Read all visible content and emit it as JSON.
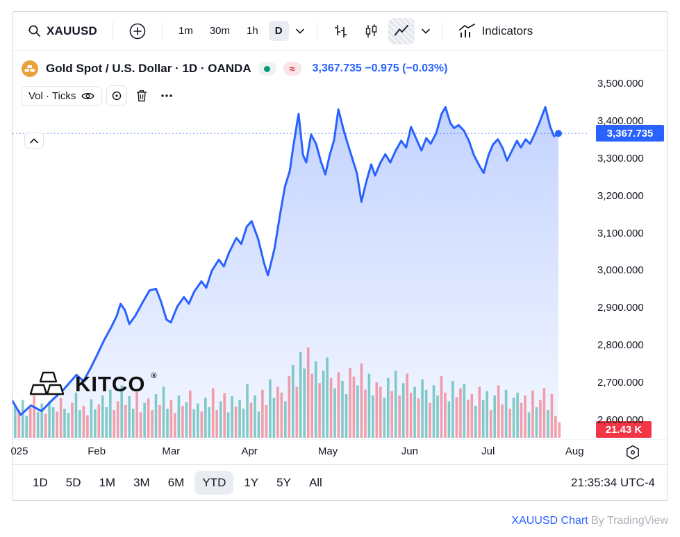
{
  "toolbar": {
    "symbol": "XAUUSD",
    "intervals": [
      {
        "label": "1m"
      },
      {
        "label": "30m"
      },
      {
        "label": "1h"
      },
      {
        "label": "D"
      }
    ],
    "selected_interval": "D",
    "indicators_label": "Indicators"
  },
  "legend": {
    "title": "Gold Spot / U.S. Dollar · 1D · OANDA",
    "approx": "≈",
    "price": "3,367.735",
    "change": "−0.975 (−0.03%)",
    "vol_label": "Vol · Ticks"
  },
  "watermark": {
    "text": "KITCO",
    "reg": "®"
  },
  "price_scale": {
    "ticks": [
      {
        "label": "3,500.000",
        "value": 3500
      },
      {
        "label": "3,400.000",
        "value": 3400
      },
      {
        "label": "3,300.000",
        "value": 3300
      },
      {
        "label": "3,200.000",
        "value": 3200
      },
      {
        "label": "3,100.000",
        "value": 3100
      },
      {
        "label": "3,000.000",
        "value": 3000
      },
      {
        "label": "2,900.000",
        "value": 2900
      },
      {
        "label": "2,800.000",
        "value": 2800
      },
      {
        "label": "2,700.000",
        "value": 2700
      },
      {
        "label": "2,600.000",
        "value": 2600
      }
    ],
    "current_label": "3,367.735",
    "volume_label": "21.43 K"
  },
  "time_axis": {
    "labels": [
      {
        "text": "025",
        "t": 0.012
      },
      {
        "text": "Feb",
        "t": 0.146
      },
      {
        "text": "Mar",
        "t": 0.275
      },
      {
        "text": "Apr",
        "t": 0.411
      },
      {
        "text": "May",
        "t": 0.547
      },
      {
        "text": "Jun",
        "t": 0.689
      },
      {
        "text": "Jul",
        "t": 0.825
      },
      {
        "text": "Aug",
        "t": 0.975
      }
    ]
  },
  "range_toolbar": {
    "items": [
      "1D",
      "5D",
      "1M",
      "3M",
      "6M",
      "YTD",
      "1Y",
      "5Y",
      "All"
    ],
    "selected": "YTD",
    "clock": "21:35:34 UTC-4"
  },
  "footer": {
    "link": "XAUUSD Chart",
    "by": " By TradingView"
  },
  "colors": {
    "accent": "#2962ff",
    "up": "#26a69a",
    "down": "#f23645",
    "status_green": "#089981",
    "price_chip_bg": "#2962ff",
    "volume_chip_bg": "#f23645",
    "coin_gold": "#EAA13B"
  },
  "chart_data": {
    "type": "area",
    "title": "Gold Spot / U.S. Dollar",
    "symbol": "XAUUSD",
    "interval": "1D",
    "exchange": "OANDA",
    "last_price": 3367.735,
    "change": -0.975,
    "change_pct": -0.03,
    "y_range": [
      2600,
      3500
    ],
    "x_unit": "fraction of visible range (Jan 2025 – Aug 2025)",
    "points": [
      [
        0.0,
        2652
      ],
      [
        0.015,
        2615
      ],
      [
        0.034,
        2640
      ],
      [
        0.053,
        2625
      ],
      [
        0.073,
        2655
      ],
      [
        0.092,
        2680
      ],
      [
        0.104,
        2700
      ],
      [
        0.117,
        2722
      ],
      [
        0.13,
        2705
      ],
      [
        0.143,
        2740
      ],
      [
        0.154,
        2772
      ],
      [
        0.168,
        2815
      ],
      [
        0.181,
        2850
      ],
      [
        0.191,
        2880
      ],
      [
        0.198,
        2912
      ],
      [
        0.206,
        2895
      ],
      [
        0.214,
        2858
      ],
      [
        0.225,
        2880
      ],
      [
        0.238,
        2915
      ],
      [
        0.251,
        2948
      ],
      [
        0.263,
        2952
      ],
      [
        0.272,
        2918
      ],
      [
        0.282,
        2870
      ],
      [
        0.29,
        2862
      ],
      [
        0.302,
        2905
      ],
      [
        0.314,
        2930
      ],
      [
        0.323,
        2912
      ],
      [
        0.333,
        2945
      ],
      [
        0.346,
        2972
      ],
      [
        0.355,
        2955
      ],
      [
        0.365,
        3000
      ],
      [
        0.378,
        3030
      ],
      [
        0.387,
        3012
      ],
      [
        0.397,
        3050
      ],
      [
        0.41,
        3088
      ],
      [
        0.419,
        3072
      ],
      [
        0.429,
        3118
      ],
      [
        0.438,
        3133
      ],
      [
        0.45,
        3085
      ],
      [
        0.461,
        3020
      ],
      [
        0.468,
        2988
      ],
      [
        0.48,
        3060
      ],
      [
        0.49,
        3150
      ],
      [
        0.499,
        3225
      ],
      [
        0.508,
        3268
      ],
      [
        0.514,
        3330
      ],
      [
        0.524,
        3420
      ],
      [
        0.532,
        3310
      ],
      [
        0.538,
        3290
      ],
      [
        0.547,
        3365
      ],
      [
        0.556,
        3340
      ],
      [
        0.565,
        3292
      ],
      [
        0.573,
        3258
      ],
      [
        0.581,
        3310
      ],
      [
        0.589,
        3350
      ],
      [
        0.597,
        3432
      ],
      [
        0.606,
        3380
      ],
      [
        0.613,
        3345
      ],
      [
        0.623,
        3298
      ],
      [
        0.631,
        3260
      ],
      [
        0.639,
        3185
      ],
      [
        0.648,
        3238
      ],
      [
        0.657,
        3285
      ],
      [
        0.664,
        3255
      ],
      [
        0.674,
        3290
      ],
      [
        0.683,
        3312
      ],
      [
        0.692,
        3290
      ],
      [
        0.702,
        3322
      ],
      [
        0.712,
        3348
      ],
      [
        0.721,
        3330
      ],
      [
        0.73,
        3385
      ],
      [
        0.74,
        3352
      ],
      [
        0.749,
        3322
      ],
      [
        0.758,
        3355
      ],
      [
        0.766,
        3340
      ],
      [
        0.776,
        3368
      ],
      [
        0.786,
        3420
      ],
      [
        0.793,
        3438
      ],
      [
        0.802,
        3395
      ],
      [
        0.809,
        3382
      ],
      [
        0.817,
        3390
      ],
      [
        0.827,
        3375
      ],
      [
        0.836,
        3348
      ],
      [
        0.845,
        3310
      ],
      [
        0.855,
        3282
      ],
      [
        0.863,
        3262
      ],
      [
        0.872,
        3310
      ],
      [
        0.88,
        3338
      ],
      [
        0.889,
        3352
      ],
      [
        0.898,
        3328
      ],
      [
        0.906,
        3295
      ],
      [
        0.915,
        3322
      ],
      [
        0.924,
        3348
      ],
      [
        0.931,
        3330
      ],
      [
        0.94,
        3352
      ],
      [
        0.948,
        3340
      ],
      [
        0.957,
        3368
      ],
      [
        0.966,
        3400
      ],
      [
        0.976,
        3438
      ],
      [
        0.985,
        3385
      ],
      [
        0.992,
        3360
      ],
      [
        1.0,
        3367.735
      ]
    ],
    "volume": {
      "unit": "K",
      "last_label": "21.43 K",
      "values": [
        45,
        38,
        52,
        30,
        41,
        58,
        35,
        47,
        33,
        50,
        42,
        36,
        55,
        40,
        34,
        48,
        62,
        38,
        44,
        31,
        53,
        39,
        46,
        58,
        42,
        66,
        38,
        50,
        72,
        45,
        57,
        40,
        63,
        35,
        48,
        54,
        38,
        60,
        45,
        70,
        40,
        52,
        34,
        58,
        44,
        49,
        65,
        39,
        47,
        36,
        55,
        42,
        68,
        38,
        50,
        61,
        35,
        57,
        43,
        52,
        40,
        74,
        48,
        58,
        36,
        66,
        45,
        80,
        55,
        70,
        62,
        50,
        85,
        100,
        70,
        118,
        95,
        124,
        88,
        105,
        75,
        92,
        110,
        82,
        68,
        90,
        78,
        60,
        96,
        84,
        72,
        102,
        66,
        88,
        58,
        76,
        70,
        55,
        82,
        64,
        92,
        58,
        75,
        88,
        62,
        70,
        54,
        80,
        66,
        48,
        72,
        58,
        85,
        62,
        50,
        78,
        56,
        68,
        74,
        52,
        60,
        44,
        70,
        52,
        64,
        38,
        58,
        72,
        46,
        66,
        40,
        55,
        62,
        48,
        58,
        35,
        65,
        42,
        52,
        68,
        38,
        60,
        30,
        21.43
      ],
      "dirs": [
        "uduudduuduud",
        "duuduudduudu",
        "uudduduuddud",
        "duduuddududu",
        "uduudduduudu",
        "uuduudduuddu",
        "duduudduduud",
        "uduuddudduud",
        "duudududdudu",
        "uduudduuddud",
        "duduududdudu",
        "uddududduddd"
      ]
    }
  }
}
